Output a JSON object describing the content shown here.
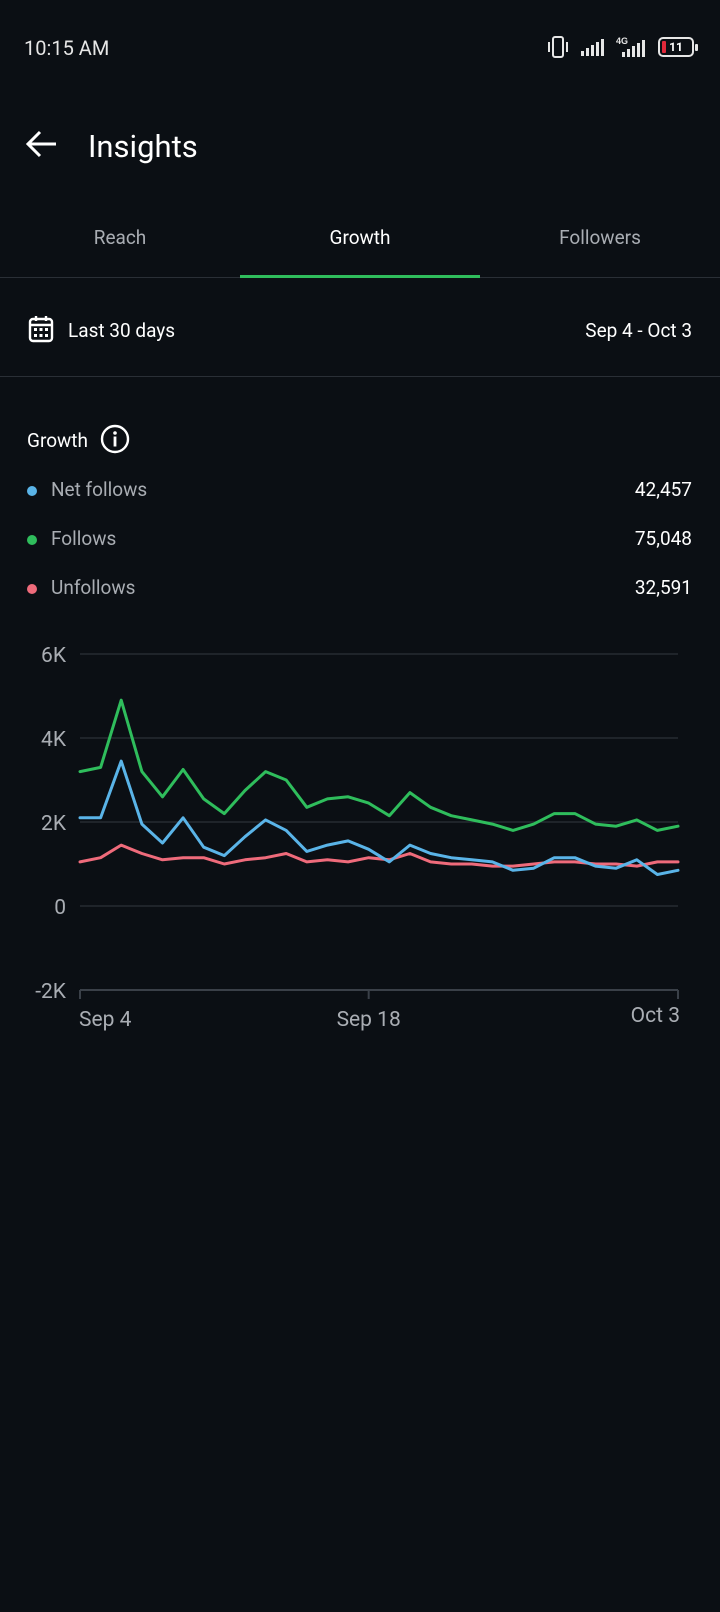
{
  "status_bar": {
    "time": "10:15 AM",
    "network_label": "4G",
    "battery_level": "11",
    "icons": [
      "vibrate-icon",
      "signal-icon",
      "4g-signal-icon",
      "battery-icon"
    ]
  },
  "header": {
    "title": "Insights",
    "back_icon": "arrow-left-icon"
  },
  "tabs": [
    {
      "label": "Reach",
      "active": false
    },
    {
      "label": "Growth",
      "active": true
    },
    {
      "label": "Followers",
      "active": false
    }
  ],
  "date_filter": {
    "icon": "calendar-icon",
    "label": "Last 30 days",
    "range": "Sep 4 - Oct 3"
  },
  "growth": {
    "title": "Growth",
    "info_icon": "info-icon",
    "metrics": [
      {
        "label": "Net follows",
        "value": "42,457",
        "color": "#5ab4e8"
      },
      {
        "label": "Follows",
        "value": "75,048",
        "color": "#2fbd5c"
      },
      {
        "label": "Unfollows",
        "value": "32,591",
        "color": "#ef6b7b"
      }
    ]
  },
  "chart_data": {
    "type": "line",
    "x": [
      "Sep 4",
      "Sep 5",
      "Sep 6",
      "Sep 7",
      "Sep 8",
      "Sep 9",
      "Sep 10",
      "Sep 11",
      "Sep 12",
      "Sep 13",
      "Sep 14",
      "Sep 15",
      "Sep 16",
      "Sep 17",
      "Sep 18",
      "Sep 19",
      "Sep 20",
      "Sep 21",
      "Sep 22",
      "Sep 23",
      "Sep 24",
      "Sep 25",
      "Sep 26",
      "Sep 27",
      "Sep 28",
      "Sep 29",
      "Sep 30",
      "Oct 1",
      "Oct 2",
      "Oct 3"
    ],
    "x_tick_labels": [
      "Sep 4",
      "Sep 18",
      "Oct 3"
    ],
    "y_tick_labels": [
      "6K",
      "4K",
      "2K",
      "0",
      "-2K"
    ],
    "y_ticks": [
      6000,
      4000,
      2000,
      0,
      -2000
    ],
    "ylim": [
      -2000,
      6000
    ],
    "grid": true,
    "series": [
      {
        "name": "Follows",
        "color": "#2fbd5c",
        "values": [
          3200,
          3300,
          4900,
          3200,
          2600,
          3250,
          2550,
          2200,
          2750,
          3200,
          3000,
          2350,
          2550,
          2600,
          2450,
          2150,
          2700,
          2350,
          2150,
          2050,
          1950,
          1800,
          1950,
          2200,
          2200,
          1950,
          1900,
          2050,
          1800,
          1900
        ]
      },
      {
        "name": "Net follows",
        "color": "#5ab4e8",
        "values": [
          2100,
          2100,
          3450,
          1950,
          1500,
          2100,
          1400,
          1200,
          1650,
          2050,
          1800,
          1300,
          1450,
          1550,
          1350,
          1050,
          1450,
          1250,
          1150,
          1100,
          1050,
          850,
          900,
          1150,
          1150,
          950,
          900,
          1100,
          750,
          850
        ]
      },
      {
        "name": "Unfollows",
        "color": "#ef6b7b",
        "values": [
          1050,
          1150,
          1450,
          1250,
          1100,
          1150,
          1150,
          1000,
          1100,
          1150,
          1250,
          1050,
          1100,
          1050,
          1150,
          1100,
          1250,
          1050,
          1000,
          1000,
          950,
          950,
          1000,
          1050,
          1050,
          1000,
          1000,
          950,
          1050,
          1050
        ]
      }
    ]
  }
}
